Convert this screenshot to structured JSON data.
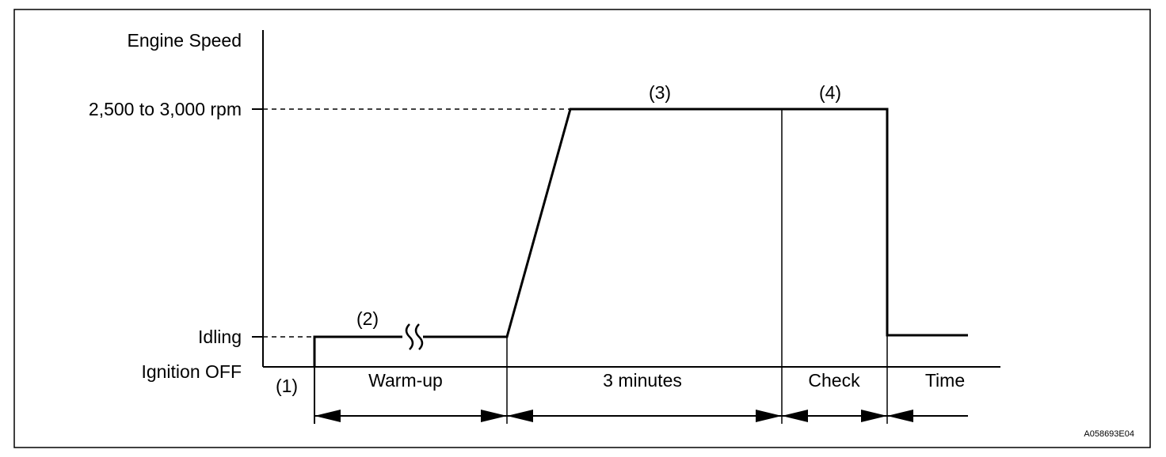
{
  "axis": {
    "y_label": "Engine Speed",
    "levels": [
      "2,500 to 3,000 rpm",
      "Idling",
      "Ignition OFF"
    ]
  },
  "steps": [
    "(1)",
    "(2)",
    "(3)",
    "(4)"
  ],
  "phases": [
    "Warm-up",
    "3 minutes",
    "Check",
    "Time"
  ],
  "figure_id": "A058693E04"
}
